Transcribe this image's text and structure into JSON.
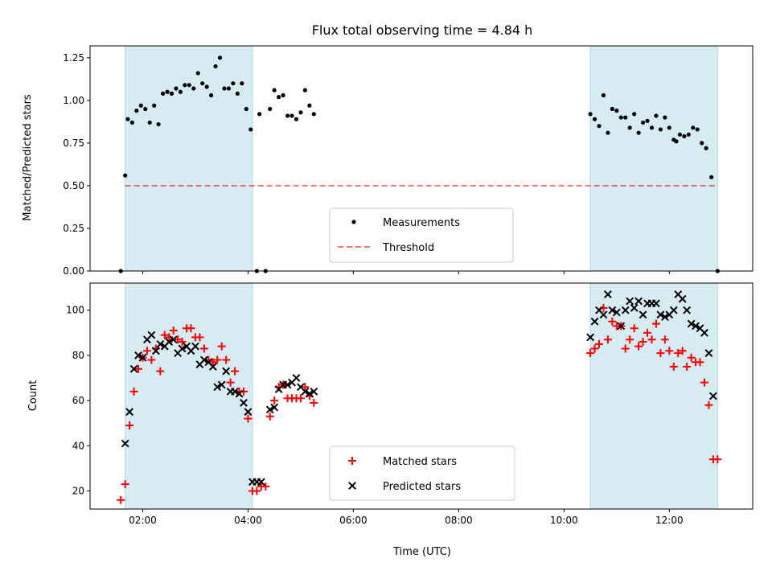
{
  "chart_data": [
    {
      "type": "scatter",
      "title": "Flux total observing time = 4.84 h",
      "ylabel": "Matched/Predicted stars",
      "xlabel": "",
      "ylim": [
        0,
        1.32
      ],
      "yticks": [
        "0.00",
        "0.25",
        "0.50",
        "0.75",
        "1.00",
        "1.25"
      ],
      "shaded_intervals": [
        [
          "01:40",
          "04:05"
        ],
        [
          "10:30",
          "12:55"
        ]
      ],
      "shade_color": "#add8e6",
      "legend_position": "bottom-center",
      "threshold": {
        "name": "Threshold",
        "y": 0.5,
        "x_range": [
          "01:40",
          "12:55"
        ],
        "color": "#ff0000",
        "style": "dashed"
      },
      "series": [
        {
          "name": "Measurements",
          "marker": "dot",
          "color": "#000000",
          "points": [
            [
              "01:35",
              0.0
            ],
            [
              "01:40",
              0.56
            ],
            [
              "01:43",
              0.89
            ],
            [
              "01:48",
              0.87
            ],
            [
              "01:53",
              0.94
            ],
            [
              "01:58",
              0.97
            ],
            [
              "02:03",
              0.95
            ],
            [
              "02:08",
              0.87
            ],
            [
              "02:13",
              0.97
            ],
            [
              "02:18",
              0.86
            ],
            [
              "02:23",
              1.04
            ],
            [
              "02:28",
              1.05
            ],
            [
              "02:33",
              1.04
            ],
            [
              "02:38",
              1.07
            ],
            [
              "02:43",
              1.05
            ],
            [
              "02:48",
              1.09
            ],
            [
              "02:53",
              1.09
            ],
            [
              "02:58",
              1.07
            ],
            [
              "03:03",
              1.16
            ],
            [
              "03:08",
              1.1
            ],
            [
              "03:13",
              1.08
            ],
            [
              "03:18",
              1.03
            ],
            [
              "03:23",
              1.2
            ],
            [
              "03:28",
              1.25
            ],
            [
              "03:33",
              1.07
            ],
            [
              "03:38",
              1.07
            ],
            [
              "03:43",
              1.1
            ],
            [
              "03:48",
              1.04
            ],
            [
              "03:53",
              1.1
            ],
            [
              "03:58",
              0.95
            ],
            [
              "04:03",
              0.83
            ],
            [
              "04:10",
              0.0
            ],
            [
              "04:20",
              0.0
            ],
            [
              "04:13",
              0.92
            ],
            [
              "04:25",
              0.95
            ],
            [
              "04:30",
              1.06
            ],
            [
              "04:35",
              1.02
            ],
            [
              "04:40",
              1.03
            ],
            [
              "04:45",
              0.91
            ],
            [
              "04:50",
              0.91
            ],
            [
              "04:55",
              0.89
            ],
            [
              "05:00",
              0.93
            ],
            [
              "05:05",
              1.06
            ],
            [
              "05:10",
              0.97
            ],
            [
              "05:15",
              0.92
            ],
            [
              "10:30",
              0.92
            ],
            [
              "10:35",
              0.89
            ],
            [
              "10:40",
              0.85
            ],
            [
              "10:45",
              1.03
            ],
            [
              "10:50",
              0.81
            ],
            [
              "10:55",
              0.95
            ],
            [
              "11:00",
              0.94
            ],
            [
              "11:05",
              0.9
            ],
            [
              "11:10",
              0.9
            ],
            [
              "11:15",
              0.84
            ],
            [
              "11:20",
              0.92
            ],
            [
              "11:25",
              0.81
            ],
            [
              "11:30",
              0.87
            ],
            [
              "11:35",
              0.88
            ],
            [
              "11:40",
              0.84
            ],
            [
              "11:45",
              0.91
            ],
            [
              "11:50",
              0.83
            ],
            [
              "11:55",
              0.9
            ],
            [
              "12:00",
              0.84
            ],
            [
              "12:05",
              0.77
            ],
            [
              "12:08",
              0.76
            ],
            [
              "12:12",
              0.8
            ],
            [
              "12:17",
              0.79
            ],
            [
              "12:22",
              0.8
            ],
            [
              "12:27",
              0.84
            ],
            [
              "12:32",
              0.83
            ],
            [
              "12:37",
              0.75
            ],
            [
              "12:42",
              0.72
            ],
            [
              "12:48",
              0.55
            ],
            [
              "12:55",
              0.0
            ]
          ]
        }
      ]
    },
    {
      "type": "scatter",
      "title": "",
      "ylabel": "Count",
      "xlabel": "Time (UTC)",
      "xlim": [
        "01:00",
        "13:35"
      ],
      "xticks": [
        "02:00",
        "04:00",
        "06:00",
        "08:00",
        "10:00",
        "12:00"
      ],
      "ylim": [
        12,
        112
      ],
      "yticks": [
        "20",
        "40",
        "60",
        "80",
        "100"
      ],
      "legend_position": "bottom-center",
      "series": [
        {
          "name": "Matched stars",
          "marker": "plus",
          "color": "#ff0000",
          "points": [
            [
              "01:35",
              16
            ],
            [
              "01:40",
              23
            ],
            [
              "01:45",
              49
            ],
            [
              "01:50",
              64
            ],
            [
              "01:55",
              74
            ],
            [
              "02:00",
              79
            ],
            [
              "02:05",
              82
            ],
            [
              "02:10",
              78
            ],
            [
              "02:15",
              83
            ],
            [
              "02:20",
              73
            ],
            [
              "02:25",
              89
            ],
            [
              "02:30",
              88
            ],
            [
              "02:35",
              91
            ],
            [
              "02:40",
              87
            ],
            [
              "02:45",
              86
            ],
            [
              "02:50",
              92
            ],
            [
              "02:55",
              92
            ],
            [
              "03:00",
              88
            ],
            [
              "03:05",
              88
            ],
            [
              "03:10",
              83
            ],
            [
              "03:15",
              78
            ],
            [
              "03:20",
              77
            ],
            [
              "03:25",
              78
            ],
            [
              "03:30",
              84
            ],
            [
              "03:35",
              78
            ],
            [
              "03:40",
              68
            ],
            [
              "03:45",
              73
            ],
            [
              "03:50",
              64
            ],
            [
              "03:55",
              64
            ],
            [
              "04:00",
              52
            ],
            [
              "04:05",
              20
            ],
            [
              "04:10",
              20
            ],
            [
              "04:15",
              22
            ],
            [
              "04:20",
              22
            ],
            [
              "04:25",
              53
            ],
            [
              "04:30",
              60
            ],
            [
              "04:35",
              66
            ],
            [
              "04:40",
              67
            ],
            [
              "04:45",
              61
            ],
            [
              "04:50",
              61
            ],
            [
              "04:55",
              61
            ],
            [
              "05:00",
              61
            ],
            [
              "05:05",
              66
            ],
            [
              "05:10",
              62
            ],
            [
              "05:15",
              59
            ],
            [
              "10:30",
              81
            ],
            [
              "10:35",
              83
            ],
            [
              "10:40",
              85
            ],
            [
              "10:45",
              101
            ],
            [
              "10:50",
              87
            ],
            [
              "10:55",
              95
            ],
            [
              "11:00",
              93
            ],
            [
              "11:05",
              93
            ],
            [
              "11:10",
              83
            ],
            [
              "11:15",
              87
            ],
            [
              "11:20",
              92
            ],
            [
              "11:25",
              84
            ],
            [
              "11:30",
              86
            ],
            [
              "11:35",
              90
            ],
            [
              "11:40",
              87
            ],
            [
              "11:45",
              94
            ],
            [
              "11:50",
              81
            ],
            [
              "11:55",
              87
            ],
            [
              "12:00",
              82
            ],
            [
              "12:05",
              75
            ],
            [
              "12:10",
              81
            ],
            [
              "12:15",
              82
            ],
            [
              "12:20",
              75
            ],
            [
              "12:25",
              79
            ],
            [
              "12:30",
              77
            ],
            [
              "12:35",
              77
            ],
            [
              "12:40",
              68
            ],
            [
              "12:45",
              58
            ],
            [
              "12:50",
              34
            ],
            [
              "12:55",
              34
            ]
          ]
        },
        {
          "name": "Predicted stars",
          "marker": "x",
          "color": "#000000",
          "points": [
            [
              "01:40",
              41
            ],
            [
              "01:45",
              55
            ],
            [
              "01:50",
              74
            ],
            [
              "01:55",
              80
            ],
            [
              "02:00",
              79
            ],
            [
              "02:05",
              87
            ],
            [
              "02:10",
              89
            ],
            [
              "02:15",
              82
            ],
            [
              "02:20",
              85
            ],
            [
              "02:25",
              84
            ],
            [
              "02:30",
              86
            ],
            [
              "02:35",
              87
            ],
            [
              "02:40",
              81
            ],
            [
              "02:45",
              83
            ],
            [
              "02:50",
              84
            ],
            [
              "02:55",
              82
            ],
            [
              "03:00",
              84
            ],
            [
              "03:05",
              76
            ],
            [
              "03:10",
              78
            ],
            [
              "03:15",
              77
            ],
            [
              "03:20",
              75
            ],
            [
              "03:25",
              66
            ],
            [
              "03:30",
              67
            ],
            [
              "03:35",
              73
            ],
            [
              "03:40",
              64
            ],
            [
              "03:45",
              64
            ],
            [
              "03:50",
              63
            ],
            [
              "03:55",
              59
            ],
            [
              "04:00",
              55
            ],
            [
              "04:05",
              24
            ],
            [
              "04:10",
              24
            ],
            [
              "04:15",
              24
            ],
            [
              "04:25",
              56
            ],
            [
              "04:30",
              57
            ],
            [
              "04:35",
              65
            ],
            [
              "04:40",
              67
            ],
            [
              "04:45",
              67
            ],
            [
              "04:50",
              68
            ],
            [
              "04:55",
              70
            ],
            [
              "05:00",
              66
            ],
            [
              "05:05",
              64
            ],
            [
              "05:10",
              63
            ],
            [
              "05:15",
              64
            ],
            [
              "10:30",
              88
            ],
            [
              "10:35",
              95
            ],
            [
              "10:40",
              100
            ],
            [
              "10:45",
              98
            ],
            [
              "10:50",
              107
            ],
            [
              "10:55",
              100
            ],
            [
              "11:00",
              99
            ],
            [
              "11:05",
              93
            ],
            [
              "11:10",
              100
            ],
            [
              "11:15",
              104
            ],
            [
              "11:20",
              101
            ],
            [
              "11:25",
              104
            ],
            [
              "11:30",
              98
            ],
            [
              "11:35",
              103
            ],
            [
              "11:40",
              103
            ],
            [
              "11:45",
              103
            ],
            [
              "11:50",
              98
            ],
            [
              "11:55",
              97
            ],
            [
              "12:00",
              98
            ],
            [
              "12:05",
              100
            ],
            [
              "12:10",
              107
            ],
            [
              "12:15",
              105
            ],
            [
              "12:20",
              100
            ],
            [
              "12:25",
              94
            ],
            [
              "12:30",
              93
            ],
            [
              "12:35",
              92
            ],
            [
              "12:40",
              90
            ],
            [
              "12:45",
              81
            ],
            [
              "12:50",
              62
            ]
          ]
        }
      ]
    }
  ]
}
